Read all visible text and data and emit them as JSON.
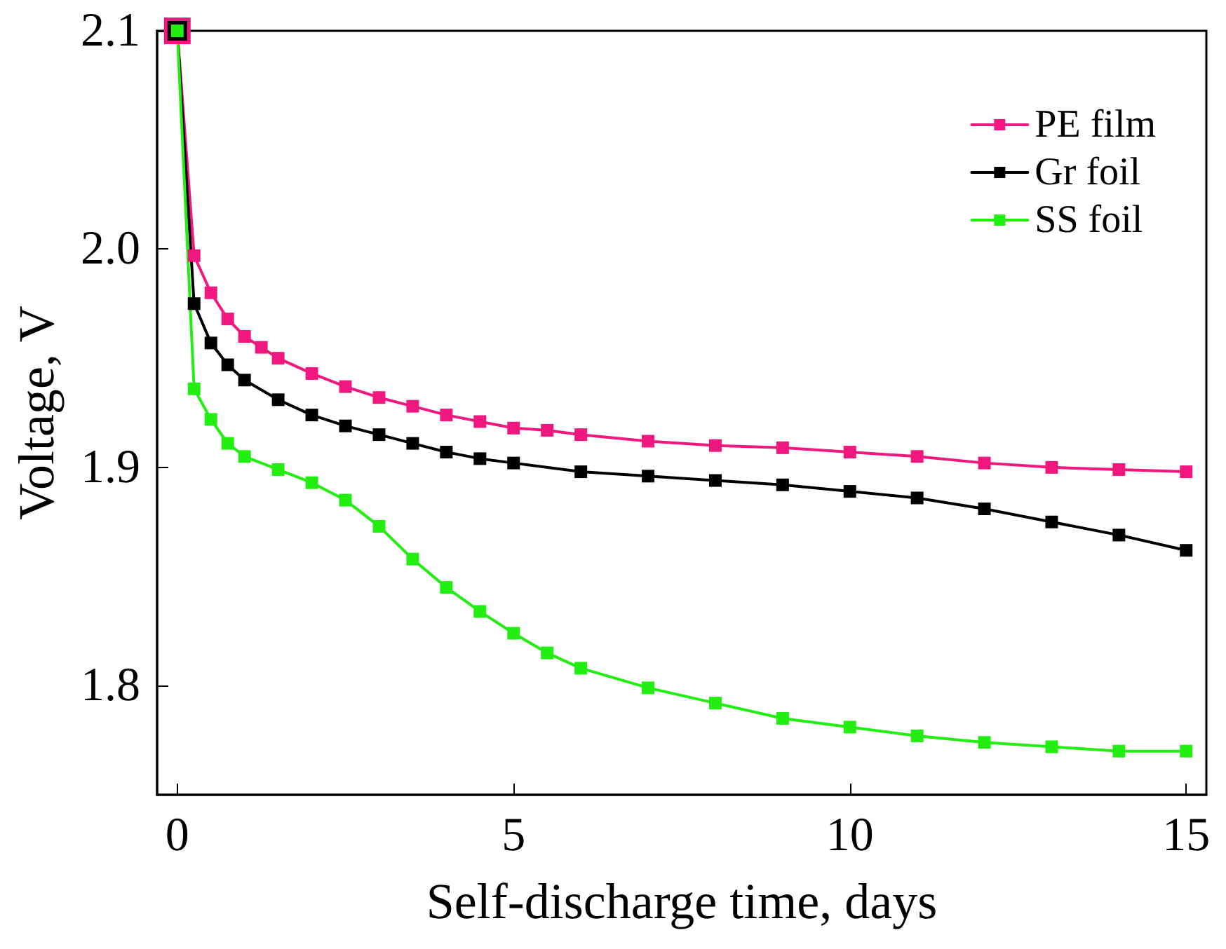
{
  "chart_data": {
    "type": "line",
    "xlabel": "Self-discharge time, days",
    "ylabel": "Voltage, V",
    "xlim": [
      -0.3,
      15.3
    ],
    "xticks": [
      0,
      5,
      10,
      15
    ],
    "ylim": [
      1.75,
      2.1
    ],
    "yticks": [
      1.8,
      1.9,
      {
        "value": 2.0,
        "label": "2.0"
      },
      2.1
    ],
    "grid": false,
    "legend": "top right",
    "marker": "square",
    "line_style": "solid",
    "series": [
      {
        "name": "PE film",
        "color": "#f0187f",
        "x": [
          0,
          0.25,
          0.5,
          0.75,
          1,
          1.25,
          1.5,
          2,
          2.5,
          3,
          3.5,
          4,
          4.5,
          5,
          5.5,
          6,
          7,
          8,
          9,
          10,
          11,
          12,
          13,
          14,
          15
        ],
        "values": [
          2.1,
          1.997,
          1.98,
          1.968,
          1.96,
          1.955,
          1.95,
          1.943,
          1.937,
          1.932,
          1.928,
          1.924,
          1.921,
          1.918,
          1.917,
          1.915,
          1.912,
          1.91,
          1.909,
          1.907,
          1.905,
          1.902,
          1.9,
          1.899,
          1.898
        ]
      },
      {
        "name": "Gr foil",
        "color": "#000000",
        "x": [
          0,
          0.25,
          0.5,
          0.75,
          1,
          1.5,
          2,
          2.5,
          3,
          3.5,
          4,
          4.5,
          5,
          6,
          7,
          8,
          9,
          10,
          11,
          12,
          13,
          14,
          15
        ],
        "values": [
          2.1,
          1.975,
          1.957,
          1.947,
          1.94,
          1.931,
          1.924,
          1.919,
          1.915,
          1.911,
          1.907,
          1.904,
          1.902,
          1.898,
          1.896,
          1.894,
          1.892,
          1.889,
          1.886,
          1.881,
          1.875,
          1.869,
          1.862
        ]
      },
      {
        "name": "SS foil",
        "color": "#22ee11",
        "x": [
          0,
          0.25,
          0.5,
          0.75,
          1,
          1.5,
          2,
          2.5,
          3,
          3.5,
          4,
          4.5,
          5,
          5.5,
          6,
          7,
          8,
          9,
          10,
          11,
          12,
          13,
          14,
          15
        ],
        "values": [
          2.1,
          1.936,
          1.922,
          1.911,
          1.905,
          1.899,
          1.893,
          1.885,
          1.873,
          1.858,
          1.845,
          1.834,
          1.824,
          1.815,
          1.808,
          1.799,
          1.792,
          1.785,
          1.781,
          1.777,
          1.774,
          1.772,
          1.77,
          1.77
        ]
      }
    ]
  }
}
